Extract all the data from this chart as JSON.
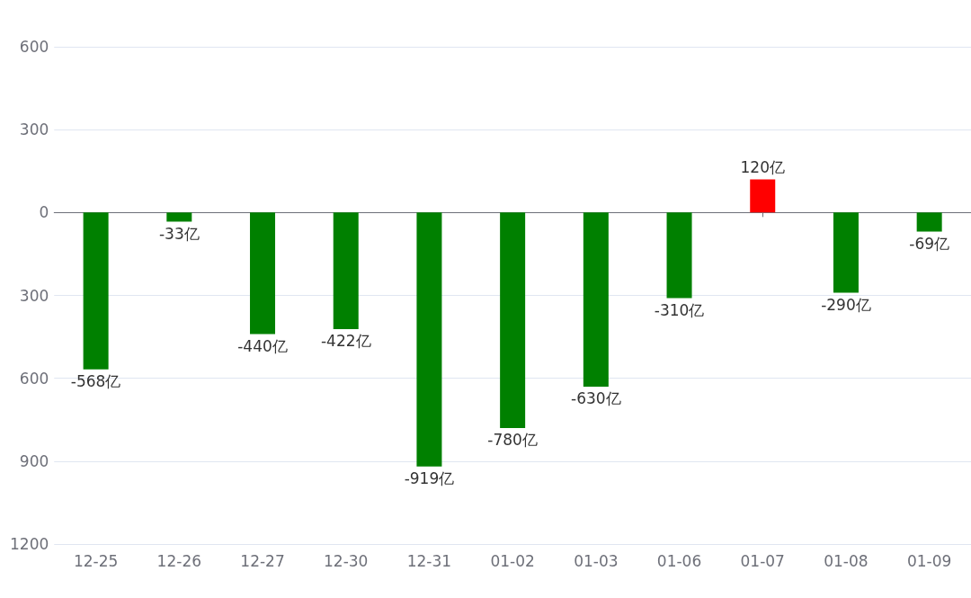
{
  "chart_data": {
    "type": "bar",
    "categories": [
      "12-25",
      "12-26",
      "12-27",
      "12-30",
      "12-31",
      "01-02",
      "01-03",
      "01-06",
      "01-07",
      "01-08",
      "01-09"
    ],
    "values": [
      -568,
      -33,
      -440,
      -422,
      -919,
      -780,
      -630,
      -310,
      120,
      -290,
      -69
    ],
    "colors": [
      "#008000",
      "#008000",
      "#008000",
      "#008000",
      "#008000",
      "#008000",
      "#008000",
      "#008000",
      "#ff0000",
      "#008000",
      "#008000"
    ],
    "value_labels": [
      "-568亿",
      "-33亿",
      "-440亿",
      "-422亿",
      "-919亿",
      "-780亿",
      "-630亿",
      "-310亿",
      "120亿",
      "-290亿",
      "-69亿"
    ],
    "ylim": [
      -1200,
      600
    ],
    "yticks": [
      {
        "value": -1200,
        "label": "1200"
      },
      {
        "value": -900,
        "label": "900"
      },
      {
        "value": -600,
        "label": "600"
      },
      {
        "value": -300,
        "label": "300"
      },
      0,
      300,
      600
    ],
    "grid": "y"
  }
}
